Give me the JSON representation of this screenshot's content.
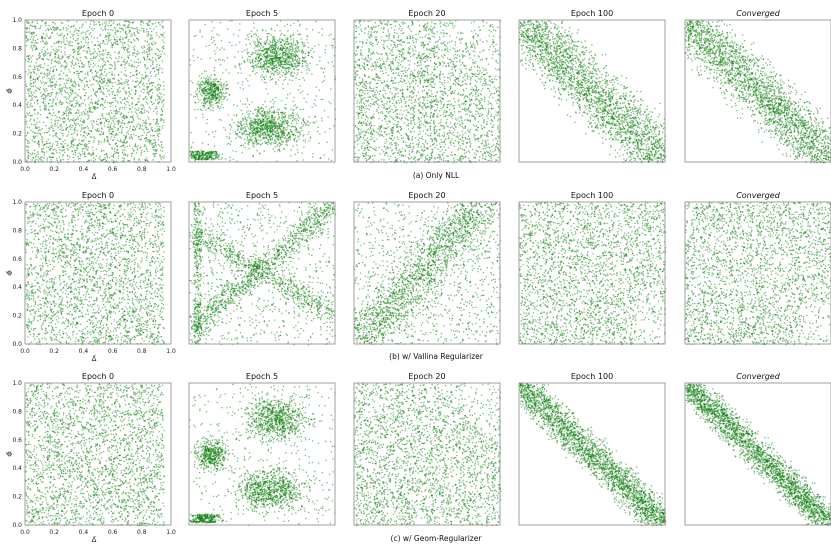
{
  "colors": {
    "points": "#0a7d0a",
    "frame": "#888888",
    "background": "#ffffff"
  },
  "x_ticks": [
    "0.0",
    "0.2",
    "0.4",
    "0.6",
    "0.8",
    "1.0"
  ],
  "y_ticks": [
    "0.0",
    "0.2",
    "0.4",
    "0.6",
    "0.8",
    "1.0"
  ],
  "xlabel": "Δ̄",
  "ylabel": "Φ̄",
  "rows": [
    {
      "caption": "(a) Only NLL",
      "titles": [
        "Epoch 0",
        "Epoch 5",
        "Epoch 20",
        "Epoch 100",
        "Converged"
      ]
    },
    {
      "caption": "(b) w/ Vallina Regularizer",
      "titles": [
        "Epoch 0",
        "Epoch 5",
        "Epoch 20",
        "Epoch 100",
        "Converged"
      ]
    },
    {
      "caption": "(c) w/ Geom-Regularizer",
      "titles": [
        "Epoch 0",
        "Epoch 5",
        "Epoch 20",
        "Epoch 100",
        "Converged"
      ]
    }
  ],
  "chart_data": {
    "type": "scatter",
    "xlim": [
      0,
      1
    ],
    "ylim": [
      0,
      1
    ],
    "xlabel": "Δ̄",
    "ylabel": "Φ̄",
    "panels": [
      {
        "row": "(a) Only NLL",
        "title": "Epoch 0",
        "pattern": "uniform band",
        "x_range": [
          0.0,
          0.92
        ],
        "y_range": [
          0.0,
          1.0
        ]
      },
      {
        "row": "(a) Only NLL",
        "title": "Epoch 5",
        "pattern": "two lobes with dense cluster near low x",
        "x_range": [
          0.0,
          1.0
        ],
        "y_range": [
          0.0,
          1.0
        ]
      },
      {
        "row": "(a) Only NLL",
        "title": "Epoch 20",
        "pattern": "filled square, sparser at top-right",
        "x_range": [
          0.0,
          1.0
        ],
        "y_range": [
          0.0,
          1.0
        ]
      },
      {
        "row": "(a) Only NLL",
        "title": "Epoch 100",
        "pattern": "anti-diagonal band",
        "x_range": [
          0.0,
          1.0
        ],
        "y_range": [
          0.0,
          1.0
        ]
      },
      {
        "row": "(a) Only NLL",
        "title": "Converged",
        "pattern": "anti-diagonal band",
        "x_range": [
          0.0,
          1.0
        ],
        "y_range": [
          0.0,
          1.0
        ]
      },
      {
        "row": "(b) w/ Vallina Regularizer",
        "title": "Epoch 0",
        "pattern": "uniform band",
        "x_range": [
          0.0,
          0.92
        ],
        "y_range": [
          0.0,
          1.0
        ]
      },
      {
        "row": "(b) w/ Vallina Regularizer",
        "title": "Epoch 5",
        "pattern": "cross pattern",
        "x_range": [
          0.0,
          1.0
        ],
        "y_range": [
          0.0,
          1.0
        ]
      },
      {
        "row": "(b) w/ Vallina Regularizer",
        "title": "Epoch 20",
        "pattern": "diagonal fill",
        "x_range": [
          0.0,
          1.0
        ],
        "y_range": [
          0.0,
          1.0
        ]
      },
      {
        "row": "(b) w/ Vallina Regularizer",
        "title": "Epoch 100",
        "pattern": "broad fill",
        "x_range": [
          0.0,
          1.0
        ],
        "y_range": [
          0.0,
          1.0
        ]
      },
      {
        "row": "(b) w/ Vallina Regularizer",
        "title": "Converged",
        "pattern": "broad fill",
        "x_range": [
          0.0,
          1.0
        ],
        "y_range": [
          0.0,
          1.0
        ]
      },
      {
        "row": "(c) w/ Geom-Regularizer",
        "title": "Epoch 0",
        "pattern": "uniform band",
        "x_range": [
          0.0,
          0.92
        ],
        "y_range": [
          0.0,
          1.0
        ]
      },
      {
        "row": "(c) w/ Geom-Regularizer",
        "title": "Epoch 5",
        "pattern": "two lobes",
        "x_range": [
          0.0,
          1.0
        ],
        "y_range": [
          0.0,
          1.0
        ]
      },
      {
        "row": "(c) w/ Geom-Regularizer",
        "title": "Epoch 20",
        "pattern": "filled square",
        "x_range": [
          0.0,
          1.0
        ],
        "y_range": [
          0.0,
          1.0
        ]
      },
      {
        "row": "(c) w/ Geom-Regularizer",
        "title": "Epoch 100",
        "pattern": "narrow anti-diagonal band",
        "x_range": [
          0.0,
          1.0
        ],
        "y_range": [
          0.0,
          1.0
        ]
      },
      {
        "row": "(c) w/ Geom-Regularizer",
        "title": "Converged",
        "pattern": "narrow anti-diagonal band",
        "x_range": [
          0.0,
          1.0
        ],
        "y_range": [
          0.0,
          1.0
        ]
      }
    ]
  }
}
